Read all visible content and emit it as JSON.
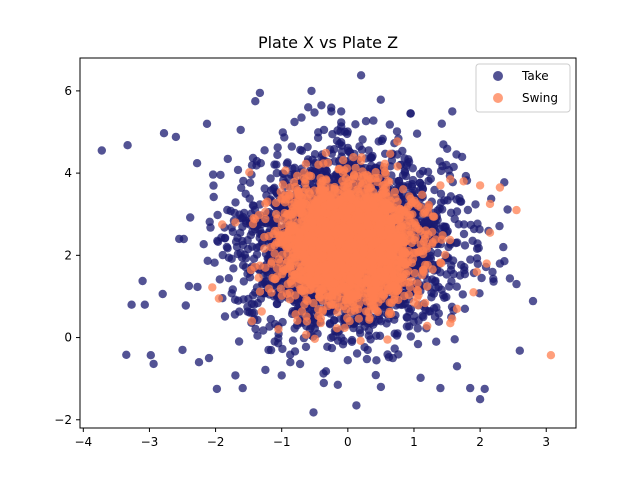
{
  "chart_data": {
    "type": "scatter",
    "title": "Plate X vs Plate Z",
    "xlabel": "",
    "ylabel": "",
    "xlim": [
      -4.05,
      3.45
    ],
    "ylim": [
      -2.2,
      6.8
    ],
    "xticks": [
      -4,
      -3,
      -2,
      -1,
      0,
      1,
      2,
      3
    ],
    "yticks": [
      -2,
      0,
      2,
      4,
      6
    ],
    "grid": false,
    "legend_position": "top-right",
    "series": [
      {
        "name": "Take",
        "color": "#191970",
        "distribution": {
          "center": [
            0.0,
            2.3
          ],
          "spread": [
            0.75,
            1.05
          ]
        },
        "count": 3200,
        "points": [
          [
            -3.72,
            4.55
          ],
          [
            -3.33,
            4.68
          ],
          [
            -3.35,
            -0.42
          ],
          [
            -3.27,
            0.8
          ],
          [
            -3.07,
            0.8
          ],
          [
            -2.98,
            -0.43
          ],
          [
            -2.8,
            1.06
          ],
          [
            -2.78,
            4.97
          ],
          [
            -2.6,
            4.88
          ],
          [
            -2.55,
            2.4
          ],
          [
            -2.5,
            -0.3
          ],
          [
            -2.45,
            0.78
          ],
          [
            -2.28,
            4.24
          ],
          [
            -2.13,
            5.2
          ],
          [
            -2.25,
            -0.6
          ],
          [
            -2.1,
            -0.5
          ],
          [
            -1.98,
            -1.25
          ],
          [
            -1.7,
            -0.92
          ],
          [
            -1.62,
            5.05
          ],
          [
            -1.59,
            -1.23
          ],
          [
            -1.4,
            5.75
          ],
          [
            -1.33,
            5.95
          ],
          [
            -1.2,
            -0.3
          ],
          [
            -1.0,
            -0.92
          ],
          [
            -0.87,
            -0.6
          ],
          [
            -0.7,
            5.35
          ],
          [
            -0.6,
            5.6
          ],
          [
            -0.55,
            6.0
          ],
          [
            -0.52,
            -1.82
          ],
          [
            -0.4,
            5.65
          ],
          [
            -0.33,
            -0.82
          ],
          [
            -0.25,
            5.5
          ],
          [
            -0.1,
            5.5
          ],
          [
            0.0,
            -0.55
          ],
          [
            0.13,
            -1.65
          ],
          [
            0.2,
            6.38
          ],
          [
            0.3,
            -0.3
          ],
          [
            0.5,
            -1.2
          ],
          [
            0.68,
            -0.5
          ],
          [
            0.95,
            5.45
          ],
          [
            1.1,
            -0.98
          ],
          [
            1.4,
            -1.23
          ],
          [
            1.58,
            5.5
          ],
          [
            1.65,
            -0.7
          ],
          [
            1.85,
            -1.23
          ],
          [
            2.0,
            -1.5
          ],
          [
            2.07,
            -1.25
          ],
          [
            2.2,
            1.43
          ],
          [
            2.3,
            1.8
          ],
          [
            2.45,
            1.44
          ],
          [
            2.55,
            1.3
          ],
          [
            2.6,
            -0.32
          ],
          [
            2.35,
            2.2
          ],
          [
            1.6,
            4.15
          ]
        ]
      },
      {
        "name": "Swing",
        "color": "#FF7F50",
        "distribution": {
          "center": [
            0.0,
            2.3
          ],
          "spread": [
            0.5,
            0.7
          ]
        },
        "count": 2600,
        "points": [
          [
            3.07,
            -0.43
          ],
          [
            2.55,
            3.1
          ],
          [
            2.3,
            3.65
          ],
          [
            2.15,
            3.25
          ],
          [
            2.0,
            3.7
          ],
          [
            2.15,
            2.55
          ],
          [
            2.1,
            1.8
          ],
          [
            1.95,
            1.6
          ],
          [
            1.9,
            1.1
          ],
          [
            1.65,
            0.7
          ],
          [
            1.75,
            3.8
          ],
          [
            1.55,
            3.85
          ],
          [
            1.4,
            3.7
          ],
          [
            0.2,
            4.3
          ],
          [
            -0.3,
            4.25
          ],
          [
            -1.9,
            2.75
          ],
          [
            -1.7,
            2.8
          ],
          [
            -2.05,
            1.22
          ],
          [
            -1.95,
            0.95
          ],
          [
            -1.45,
            0.4
          ],
          [
            -1.05,
            0.2
          ],
          [
            -0.5,
            -0.03
          ],
          [
            0.6,
            -0.05
          ],
          [
            1.2,
            0.28
          ],
          [
            1.55,
            0.35
          ]
        ]
      }
    ]
  }
}
